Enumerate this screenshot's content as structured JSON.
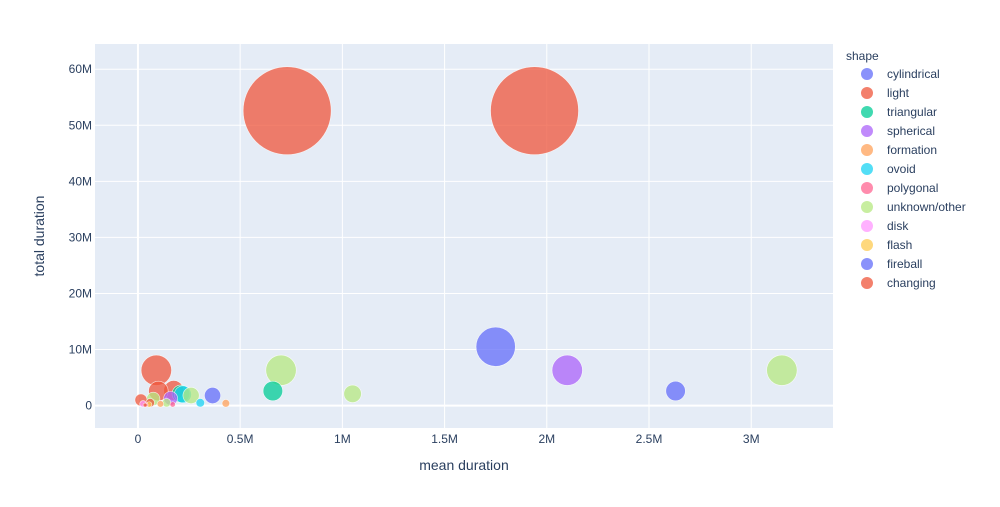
{
  "chart_data": {
    "type": "scatter",
    "subtype": "bubble",
    "xlabel": "mean duration",
    "ylabel": "total duration",
    "xlim": [
      -210000,
      3400000
    ],
    "ylim": [
      -4000000,
      64500000
    ],
    "x_ticks": [
      {
        "value": 0,
        "label": "0"
      },
      {
        "value": 500000,
        "label": "0.5M"
      },
      {
        "value": 1000000,
        "label": "1M"
      },
      {
        "value": 1500000,
        "label": "1.5M"
      },
      {
        "value": 2000000,
        "label": "2M"
      },
      {
        "value": 2500000,
        "label": "2.5M"
      },
      {
        "value": 3000000,
        "label": "3M"
      }
    ],
    "y_ticks": [
      {
        "value": 0,
        "label": "0"
      },
      {
        "value": 10000000,
        "label": "10M"
      },
      {
        "value": 20000000,
        "label": "20M"
      },
      {
        "value": 30000000,
        "label": "30M"
      },
      {
        "value": 40000000,
        "label": "40M"
      },
      {
        "value": 50000000,
        "label": "50M"
      },
      {
        "value": 60000000,
        "label": "60M"
      }
    ],
    "grid": true,
    "plot_background": "#E5ECF6",
    "legend": {
      "title": "shape",
      "placement": "right"
    },
    "marker_opacity": 0.75,
    "series": [
      {
        "name": "cylindrical",
        "color": "#636EFA",
        "points": [
          {
            "x": 1750000,
            "y": 10500000,
            "size": 10500000
          },
          {
            "x": 2630000,
            "y": 2600000,
            "size": 2600000
          }
        ]
      },
      {
        "name": "light",
        "color": "#EF553B",
        "points": [
          {
            "x": 730000,
            "y": 52600000,
            "size": 52600000
          },
          {
            "x": 1940000,
            "y": 52600000,
            "size": 52600000
          },
          {
            "x": 90000,
            "y": 6300000,
            "size": 6300000
          },
          {
            "x": 175000,
            "y": 2700000,
            "size": 2700000
          },
          {
            "x": 100000,
            "y": 2600000,
            "size": 2600000
          },
          {
            "x": 15000,
            "y": 1000000,
            "size": 1000000
          },
          {
            "x": 60000,
            "y": 500000,
            "size": 500000
          }
        ]
      },
      {
        "name": "triangular",
        "color": "#00CC96",
        "points": [
          {
            "x": 660000,
            "y": 2600000,
            "size": 2600000
          },
          {
            "x": 210000,
            "y": 2100000,
            "size": 2100000
          }
        ]
      },
      {
        "name": "spherical",
        "color": "#AB63FA",
        "points": [
          {
            "x": 2100000,
            "y": 6300000,
            "size": 6300000
          },
          {
            "x": 160000,
            "y": 1300000,
            "size": 1300000
          }
        ]
      },
      {
        "name": "formation",
        "color": "#FFA15A",
        "points": [
          {
            "x": 430000,
            "y": 400000,
            "size": 400000
          },
          {
            "x": 110000,
            "y": 300000,
            "size": 300000
          }
        ]
      },
      {
        "name": "ovoid",
        "color": "#19D3F3",
        "points": [
          {
            "x": 305000,
            "y": 500000,
            "size": 500000
          },
          {
            "x": 220000,
            "y": 2000000,
            "size": 2000000
          }
        ]
      },
      {
        "name": "polygonal",
        "color": "#FF6692",
        "points": [
          {
            "x": 170000,
            "y": 200000,
            "size": 200000
          },
          {
            "x": 40000,
            "y": 100000,
            "size": 100000
          }
        ]
      },
      {
        "name": "unknown/other",
        "color": "#B6E880",
        "points": [
          {
            "x": 3150000,
            "y": 6300000,
            "size": 6300000
          },
          {
            "x": 700000,
            "y": 6300000,
            "size": 6300000
          },
          {
            "x": 1050000,
            "y": 2100000,
            "size": 2100000
          },
          {
            "x": 260000,
            "y": 1800000,
            "size": 1800000
          },
          {
            "x": 75000,
            "y": 1200000,
            "size": 1200000
          },
          {
            "x": 140000,
            "y": 500000,
            "size": 500000
          }
        ]
      },
      {
        "name": "disk",
        "color": "#FF97FF",
        "points": [
          {
            "x": 25000,
            "y": 300000,
            "size": 300000
          }
        ]
      },
      {
        "name": "flash",
        "color": "#FECB52",
        "points": [
          {
            "x": 55000,
            "y": 200000,
            "size": 200000
          }
        ]
      },
      {
        "name": "fireball",
        "color": "#636EFA",
        "points": [
          {
            "x": 365000,
            "y": 1800000,
            "size": 1800000
          }
        ]
      },
      {
        "name": "changing",
        "color": "#EF553B",
        "points": [
          {
            "x": 35000,
            "y": 100000,
            "size": 100000
          }
        ]
      }
    ]
  }
}
